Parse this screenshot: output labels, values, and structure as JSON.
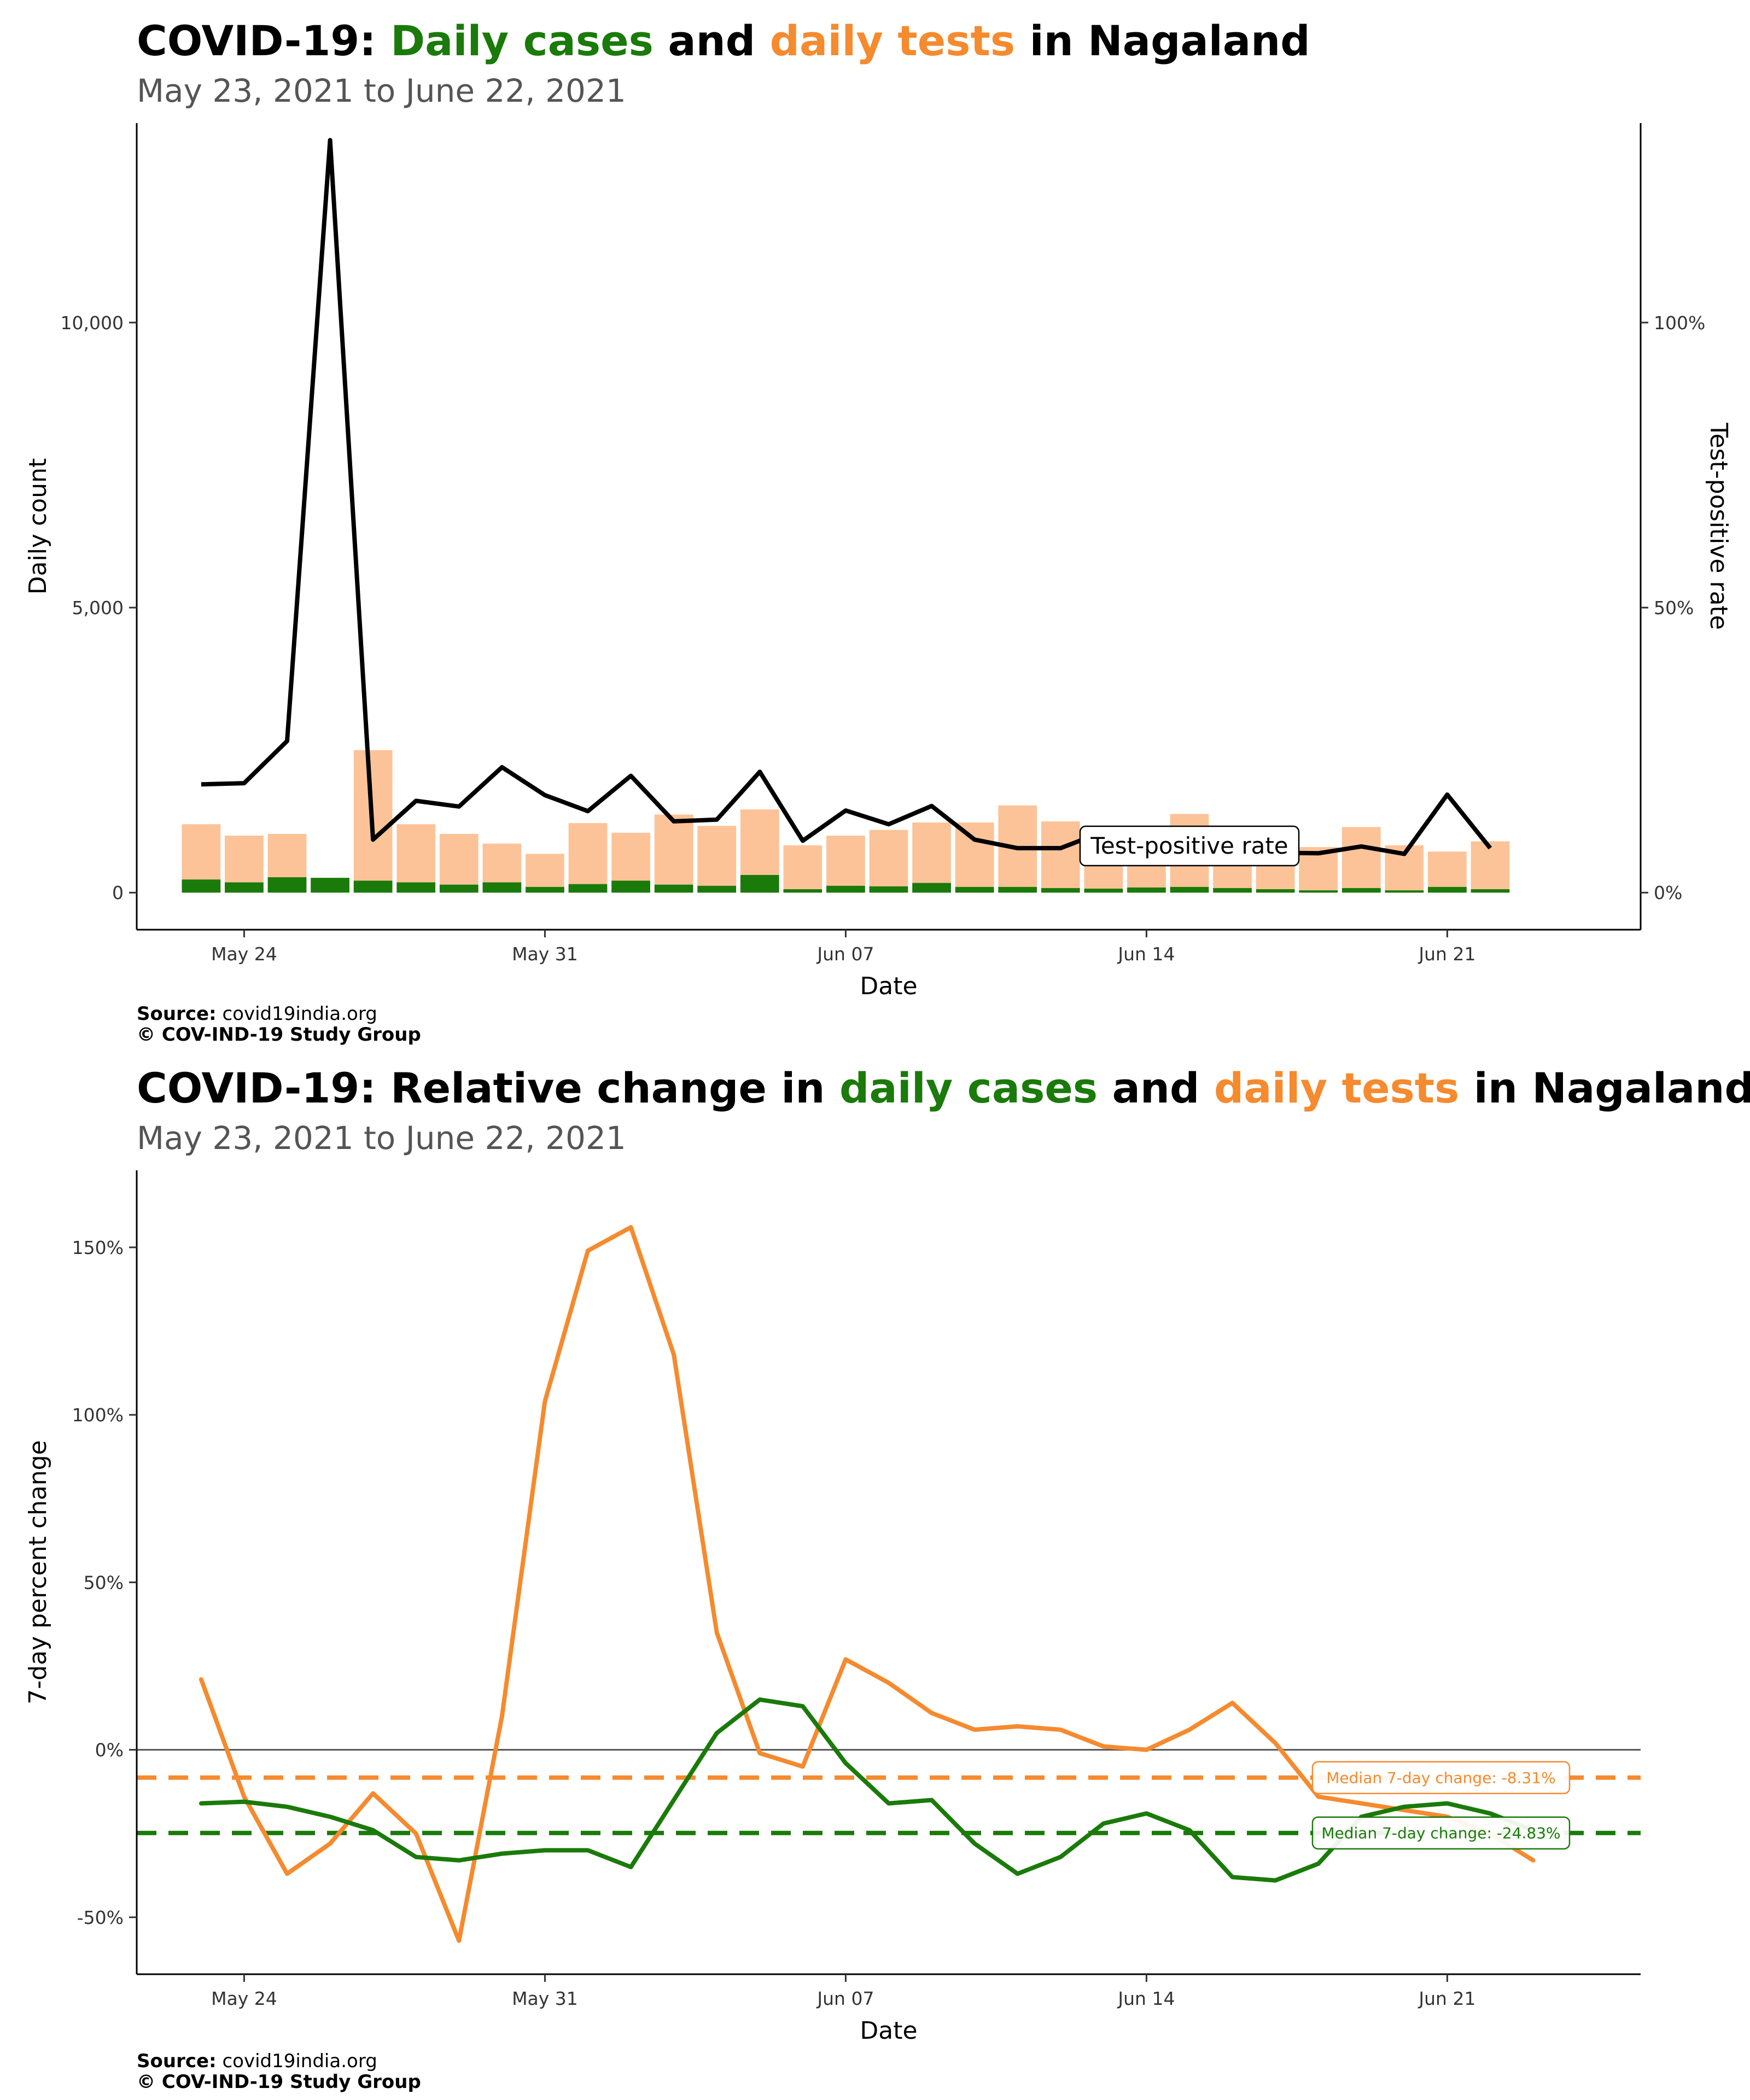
{
  "colors": {
    "cases": "#1a7a0a",
    "tests": "#f58a2e",
    "tests_light": "#fcc398",
    "tpr": "#000000"
  },
  "panel1": {
    "title_prefix": "COVID-19: ",
    "title_cases": "Daily cases",
    "title_mid": " and ",
    "title_tests": "daily tests",
    "title_suffix": " in Nagaland",
    "subtitle": "May 23, 2021 to June 22, 2021",
    "source_label": "Source:",
    "source_value": " covid19india.org",
    "copyright": "© COV-IND-19 Study Group"
  },
  "panel2": {
    "title_prefix": "COVID-19: Relative change in ",
    "title_cases": "daily cases",
    "title_mid": " and ",
    "title_tests": "daily tests",
    "title_suffix": " in Nagaland",
    "subtitle": "May 23, 2021 to June 22, 2021",
    "source_label": "Source:",
    "source_value": " covid19india.org",
    "copyright": "© COV-IND-19 Study Group"
  },
  "chart_data": [
    {
      "type": "bar",
      "xlabel": "Date",
      "ylabel": "Daily count",
      "ylabel_right": "Test-positive rate",
      "ylim": [
        -650,
        13500
      ],
      "ylim_right": [
        -6.5,
        135
      ],
      "x_start": "2021-05-23",
      "x_ticks": [
        "May 24",
        "May 31",
        "Jun 07",
        "Jun 14",
        "Jun 21"
      ],
      "y_ticks": [
        "0",
        "5,000",
        "10,000"
      ],
      "y_ticks_right": [
        "0%",
        "50%",
        "100%"
      ],
      "annotation": "Test-positive rate",
      "series": [
        {
          "name": "daily tests",
          "values": [
            1200,
            1000,
            1030,
            0,
            2500,
            1200,
            1030,
            860,
            680,
            1220,
            1050,
            1370,
            1170,
            1460,
            830,
            1000,
            1100,
            1230,
            1230,
            1530,
            1250,
            1080,
            1170,
            1380,
            1150,
            1000,
            800,
            1150,
            830,
            720,
            900
          ]
        },
        {
          "name": "daily cases",
          "values": [
            230,
            180,
            270,
            260,
            210,
            180,
            140,
            180,
            100,
            150,
            210,
            140,
            120,
            310,
            60,
            120,
            110,
            170,
            100,
            100,
            80,
            70,
            90,
            100,
            80,
            60,
            40,
            80,
            40,
            100,
            60
          ]
        },
        {
          "name": "Test-positive rate",
          "values": [
            19,
            19.2,
            26.6,
            132,
            9.3,
            16.1,
            15.1,
            22.0,
            17.1,
            14.3,
            20.5,
            12.5,
            12.8,
            21.2,
            9.1,
            14.4,
            12.0,
            15.2,
            9.3,
            7.8,
            7.8,
            10.7,
            8.3,
            7.8,
            10.2,
            7.0,
            6.9,
            8.1,
            6.8,
            17.2,
            7.8
          ]
        }
      ]
    },
    {
      "type": "line",
      "xlabel": "Date",
      "ylabel": "7-day percent change",
      "ylim": [
        -67,
        173
      ],
      "x_start": "2021-05-23",
      "x_ticks": [
        "May 24",
        "May 31",
        "Jun 07",
        "Jun 14",
        "Jun 21"
      ],
      "y_ticks": [
        "-50%",
        "0%",
        "50%",
        "100%",
        "150%"
      ],
      "reference_line": 0,
      "series": [
        {
          "name": "daily tests",
          "values": [
            21,
            -14,
            -37,
            -28,
            -13,
            -25,
            -57,
            10,
            104,
            149,
            156,
            118,
            35,
            -1,
            -5,
            27,
            20,
            11,
            6,
            7,
            6,
            1,
            0,
            6,
            14,
            2,
            -14,
            -16,
            -18,
            -20,
            -25,
            -33
          ]
        },
        {
          "name": "daily cases",
          "values": [
            -16,
            -15.5,
            -17,
            -20,
            -24,
            -32,
            -33,
            -31,
            -30,
            -30,
            -35,
            -15,
            5,
            15,
            13,
            -4,
            -16,
            -15,
            -28,
            -37,
            -32,
            -22,
            -19,
            -24,
            -38,
            -39,
            -34,
            -20,
            -17,
            -16,
            -19,
            -24
          ]
        }
      ],
      "medians": [
        {
          "series": "daily tests",
          "value": -8.31,
          "label": "Median 7-day change: -8.31%"
        },
        {
          "series": "daily cases",
          "value": -24.83,
          "label": "Median 7-day change: -24.83%"
        }
      ]
    }
  ]
}
